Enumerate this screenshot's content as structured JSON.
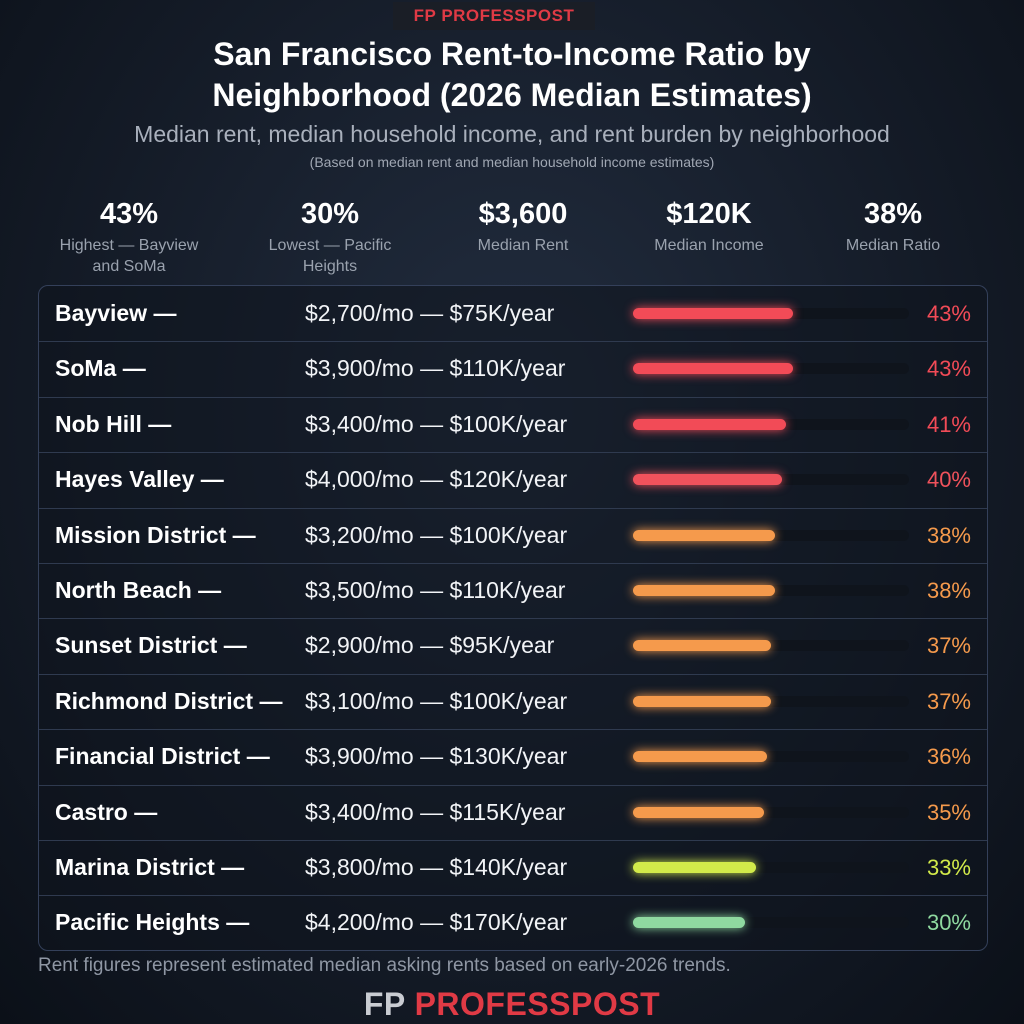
{
  "header": {
    "logo_mark": "FP",
    "logo_text": "PROFESSPOST",
    "title": "San Francisco Rent-to-Income Ratio by Neighborhood (2026 Median Estimates)",
    "subtitle": "Median rent, median household income, and rent burden by neighborhood",
    "note": "(Based on median rent and median household income estimates)"
  },
  "stats": [
    {
      "value": "43%",
      "label": "Highest — Bayview and SoMa"
    },
    {
      "value": "30%",
      "label": "Lowest — Pacific Heights"
    },
    {
      "value": "$3,600",
      "label": "Median Rent"
    },
    {
      "value": "$120K",
      "label": "Median Income"
    },
    {
      "value": "38%",
      "label": "Median Ratio"
    }
  ],
  "chart_data": {
    "type": "bar",
    "categories": [
      "Bayview —",
      "SoMa —",
      "Nob Hill —",
      "Hayes Valley —",
      "Mission District —",
      "North Beach —",
      "Sunset District —",
      "Richmond District —",
      "Financial District —",
      "Castro —",
      "Marina District —",
      "Pacific Heights —"
    ],
    "details": [
      "$2,700/mo — $75K/year",
      "$3,900/mo — $110K/year",
      "$3,400/mo — $100K/year",
      "$4,000/mo — $120K/year",
      "$3,200/mo — $100K/year",
      "$3,500/mo — $110K/year",
      "$2,900/mo — $95K/year",
      "$3,100/mo — $100K/year",
      "$3,900/mo — $130K/year",
      "$3,400/mo — $115K/year",
      "$3,800/mo — $140K/year",
      "$4,200/mo — $170K/year"
    ],
    "values": [
      43,
      43,
      41,
      40,
      38,
      38,
      37,
      37,
      36,
      35,
      33,
      30
    ],
    "value_labels": [
      "43%",
      "43%",
      "41%",
      "40%",
      "38%",
      "38%",
      "37%",
      "37%",
      "36%",
      "35%",
      "33%",
      "30%"
    ],
    "colors": [
      "#f24b57",
      "#f24b57",
      "#f24b57",
      "#f0525c",
      "#f59a4c",
      "#f59a4c",
      "#f59a4c",
      "#f59a4c",
      "#f59a4c",
      "#f59a4c",
      "#d2ea4a",
      "#8fd9a0"
    ],
    "xlim": [
      0,
      74
    ]
  },
  "footer": {
    "text": "Rent figures represent estimated median asking rents based on early-2026 trends."
  }
}
